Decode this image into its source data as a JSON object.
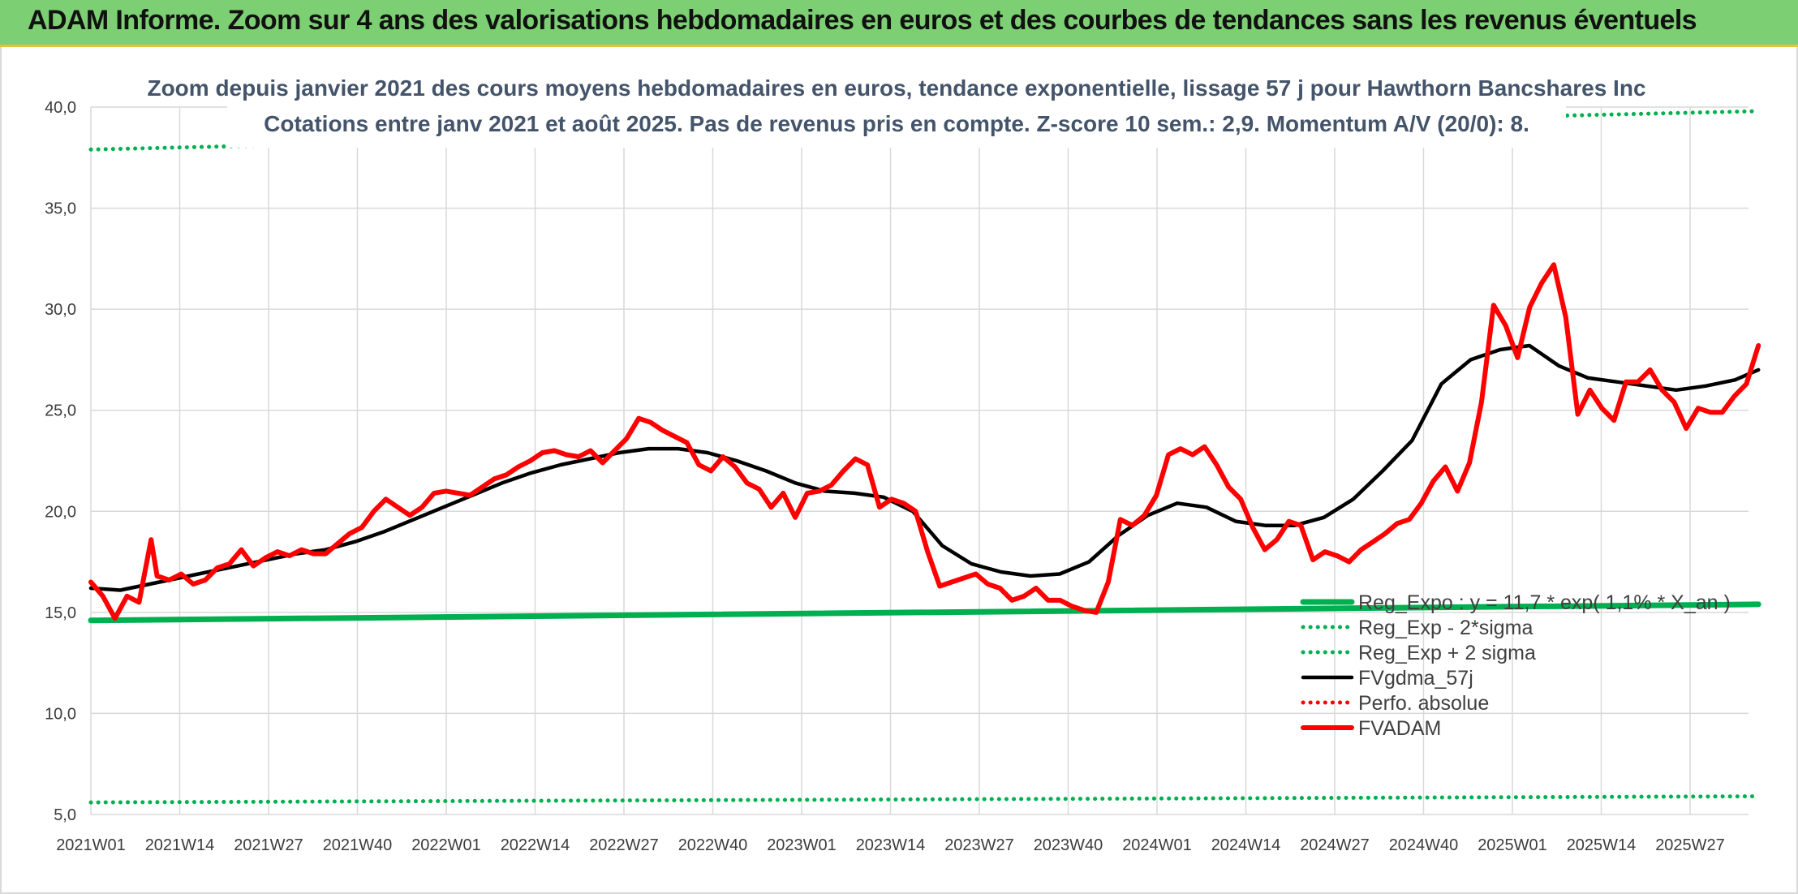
{
  "banner": {
    "title": "ADAM Informe. Zoom sur 4 ans des valorisations hebdomadaires en euros et des courbes de tendances sans les revenus éventuels"
  },
  "chart_data": {
    "type": "line",
    "title": "Zoom depuis janvier 2021 des cours moyens hebdomadaires en euros, tendance exponentielle, lissage 57 j pour Hawthorn Bancshares Inc",
    "subtitle": "Cotations entre janv 2021 et août 2025. Pas de revenus pris en compte. Z-score 10 sem.: 2,9. Momentum A/V (20/0): 8.",
    "xlabel": "",
    "ylabel": "",
    "ylim": [
      5,
      40
    ],
    "yticks": [
      "5,0",
      "10,0",
      "15,0",
      "20,0",
      "25,0",
      "30,0",
      "35,0",
      "40,0"
    ],
    "x_tick_labels": [
      "2021W01",
      "2021W14",
      "2021W27",
      "2021W40",
      "2022W01",
      "2022W14",
      "2022W27",
      "2022W40",
      "2023W01",
      "2023W14",
      "2023W27",
      "2023W40",
      "2024W01",
      "2024W14",
      "2024W27",
      "2024W40",
      "2025W01",
      "2025W14",
      "2025W27"
    ],
    "n_weeks": 245,
    "grid": "both",
    "legend_position": "bottom-right",
    "series": [
      {
        "name": "Reg_Expo : y = 11,7 * exp( 1,1% * X_an )",
        "color": "#00b050",
        "style": "solid-thick",
        "points": [
          [
            0,
            14.6
          ],
          [
            244,
            15.4
          ]
        ]
      },
      {
        "name": "Reg_Exp - 2*sigma",
        "color": "#00b050",
        "style": "dotted",
        "points": [
          [
            0,
            5.6
          ],
          [
            244,
            5.9
          ]
        ]
      },
      {
        "name": "Reg_Exp + 2 sigma",
        "color": "#00b050",
        "style": "dotted",
        "points": [
          [
            0,
            37.9
          ],
          [
            244,
            39.8
          ]
        ]
      },
      {
        "name": "FVgdma_57j",
        "color": "#000000",
        "style": "solid",
        "points": [
          [
            0,
            16.2
          ],
          [
            5,
            16.1
          ],
          [
            10,
            16.4
          ],
          [
            15,
            16.7
          ],
          [
            20,
            17.0
          ],
          [
            25,
            17.3
          ],
          [
            30,
            17.6
          ],
          [
            35,
            17.9
          ],
          [
            40,
            18.1
          ],
          [
            45,
            18.5
          ],
          [
            50,
            19.0
          ],
          [
            55,
            19.6
          ],
          [
            60,
            20.2
          ],
          [
            65,
            20.8
          ],
          [
            70,
            21.4
          ],
          [
            75,
            21.9
          ],
          [
            80,
            22.3
          ],
          [
            85,
            22.6
          ],
          [
            90,
            22.9
          ],
          [
            95,
            23.1
          ],
          [
            100,
            23.1
          ],
          [
            105,
            22.9
          ],
          [
            110,
            22.5
          ],
          [
            115,
            22.0
          ],
          [
            120,
            21.4
          ],
          [
            125,
            21.0
          ],
          [
            130,
            20.9
          ],
          [
            135,
            20.7
          ],
          [
            140,
            20.0
          ],
          [
            145,
            18.3
          ],
          [
            150,
            17.4
          ],
          [
            155,
            17.0
          ],
          [
            160,
            16.8
          ],
          [
            165,
            16.9
          ],
          [
            170,
            17.5
          ],
          [
            175,
            18.8
          ],
          [
            180,
            19.8
          ],
          [
            185,
            20.4
          ],
          [
            190,
            20.2
          ],
          [
            195,
            19.5
          ],
          [
            200,
            19.3
          ],
          [
            205,
            19.3
          ],
          [
            210,
            19.7
          ],
          [
            215,
            20.6
          ],
          [
            220,
            22.0
          ],
          [
            225,
            23.5
          ],
          [
            230,
            26.3
          ],
          [
            235,
            27.5
          ],
          [
            240,
            28.0
          ],
          [
            245,
            28.2
          ],
          [
            250,
            27.2
          ],
          [
            255,
            26.6
          ],
          [
            260,
            26.4
          ],
          [
            265,
            26.2
          ],
          [
            270,
            26.0
          ],
          [
            275,
            26.2
          ],
          [
            280,
            26.5
          ],
          [
            284,
            27.0
          ]
        ]
      },
      {
        "name": "Perfo. absolue",
        "color": "#ff0000",
        "style": "dotted",
        "points": []
      },
      {
        "name": "FVADAM",
        "color": "#ff0000",
        "style": "solid-thick",
        "points": [
          [
            0,
            16.5
          ],
          [
            2,
            15.8
          ],
          [
            4,
            14.7
          ],
          [
            6,
            15.8
          ],
          [
            8,
            15.5
          ],
          [
            10,
            18.6
          ],
          [
            11,
            16.8
          ],
          [
            13,
            16.6
          ],
          [
            15,
            16.9
          ],
          [
            17,
            16.4
          ],
          [
            19,
            16.6
          ],
          [
            21,
            17.2
          ],
          [
            23,
            17.4
          ],
          [
            25,
            18.1
          ],
          [
            27,
            17.3
          ],
          [
            29,
            17.7
          ],
          [
            31,
            18.0
          ],
          [
            33,
            17.8
          ],
          [
            35,
            18.1
          ],
          [
            37,
            17.9
          ],
          [
            39,
            17.9
          ],
          [
            41,
            18.4
          ],
          [
            43,
            18.9
          ],
          [
            45,
            19.2
          ],
          [
            47,
            20.0
          ],
          [
            49,
            20.6
          ],
          [
            51,
            20.2
          ],
          [
            53,
            19.8
          ],
          [
            55,
            20.2
          ],
          [
            57,
            20.9
          ],
          [
            59,
            21.0
          ],
          [
            61,
            20.9
          ],
          [
            63,
            20.8
          ],
          [
            65,
            21.2
          ],
          [
            67,
            21.6
          ],
          [
            69,
            21.8
          ],
          [
            71,
            22.2
          ],
          [
            73,
            22.5
          ],
          [
            75,
            22.9
          ],
          [
            77,
            23.0
          ],
          [
            79,
            22.8
          ],
          [
            81,
            22.7
          ],
          [
            83,
            23.0
          ],
          [
            85,
            22.4
          ],
          [
            87,
            23.0
          ],
          [
            89,
            23.6
          ],
          [
            91,
            24.6
          ],
          [
            93,
            24.4
          ],
          [
            95,
            24.0
          ],
          [
            97,
            23.7
          ],
          [
            99,
            23.4
          ],
          [
            101,
            22.3
          ],
          [
            103,
            22.0
          ],
          [
            105,
            22.7
          ],
          [
            107,
            22.2
          ],
          [
            109,
            21.4
          ],
          [
            111,
            21.1
          ],
          [
            113,
            20.2
          ],
          [
            115,
            20.9
          ],
          [
            117,
            19.7
          ],
          [
            119,
            20.9
          ],
          [
            121,
            21.0
          ],
          [
            123,
            21.3
          ],
          [
            125,
            22.0
          ],
          [
            127,
            22.6
          ],
          [
            129,
            22.3
          ],
          [
            131,
            20.2
          ],
          [
            133,
            20.6
          ],
          [
            135,
            20.4
          ],
          [
            137,
            20.0
          ],
          [
            139,
            18.0
          ],
          [
            141,
            16.3
          ],
          [
            143,
            16.5
          ],
          [
            145,
            16.7
          ],
          [
            147,
            16.9
          ],
          [
            149,
            16.4
          ],
          [
            151,
            16.2
          ],
          [
            153,
            15.6
          ],
          [
            155,
            15.8
          ],
          [
            157,
            16.2
          ],
          [
            159,
            15.6
          ],
          [
            161,
            15.6
          ],
          [
            163,
            15.3
          ],
          [
            165,
            15.1
          ],
          [
            167,
            15.0
          ],
          [
            169,
            16.5
          ],
          [
            171,
            19.6
          ],
          [
            173,
            19.3
          ],
          [
            175,
            19.8
          ],
          [
            177,
            20.8
          ],
          [
            179,
            22.8
          ],
          [
            181,
            23.1
          ],
          [
            183,
            22.8
          ],
          [
            185,
            23.2
          ],
          [
            187,
            22.3
          ],
          [
            189,
            21.2
          ],
          [
            191,
            20.6
          ],
          [
            193,
            19.2
          ],
          [
            195,
            18.1
          ],
          [
            197,
            18.6
          ],
          [
            199,
            19.5
          ],
          [
            201,
            19.3
          ],
          [
            203,
            17.6
          ],
          [
            205,
            18.0
          ],
          [
            207,
            17.8
          ],
          [
            209,
            17.5
          ],
          [
            211,
            18.1
          ],
          [
            213,
            18.5
          ],
          [
            215,
            18.9
          ],
          [
            217,
            19.4
          ],
          [
            219,
            19.6
          ],
          [
            221,
            20.4
          ],
          [
            223,
            21.5
          ],
          [
            225,
            22.2
          ],
          [
            227,
            21.0
          ],
          [
            229,
            22.4
          ],
          [
            231,
            25.4
          ],
          [
            233,
            30.2
          ],
          [
            235,
            29.2
          ],
          [
            237,
            27.6
          ],
          [
            239,
            30.1
          ],
          [
            241,
            31.3
          ],
          [
            243,
            32.2
          ],
          [
            245,
            29.6
          ],
          [
            247,
            24.8
          ],
          [
            249,
            26.0
          ],
          [
            251,
            25.1
          ],
          [
            253,
            24.5
          ],
          [
            255,
            26.4
          ],
          [
            257,
            26.4
          ],
          [
            259,
            27.0
          ],
          [
            261,
            26.0
          ],
          [
            263,
            25.4
          ],
          [
            265,
            24.1
          ],
          [
            267,
            25.1
          ],
          [
            269,
            24.9
          ],
          [
            271,
            24.9
          ],
          [
            273,
            25.7
          ],
          [
            275,
            26.3
          ],
          [
            277,
            28.2
          ]
        ]
      }
    ]
  }
}
